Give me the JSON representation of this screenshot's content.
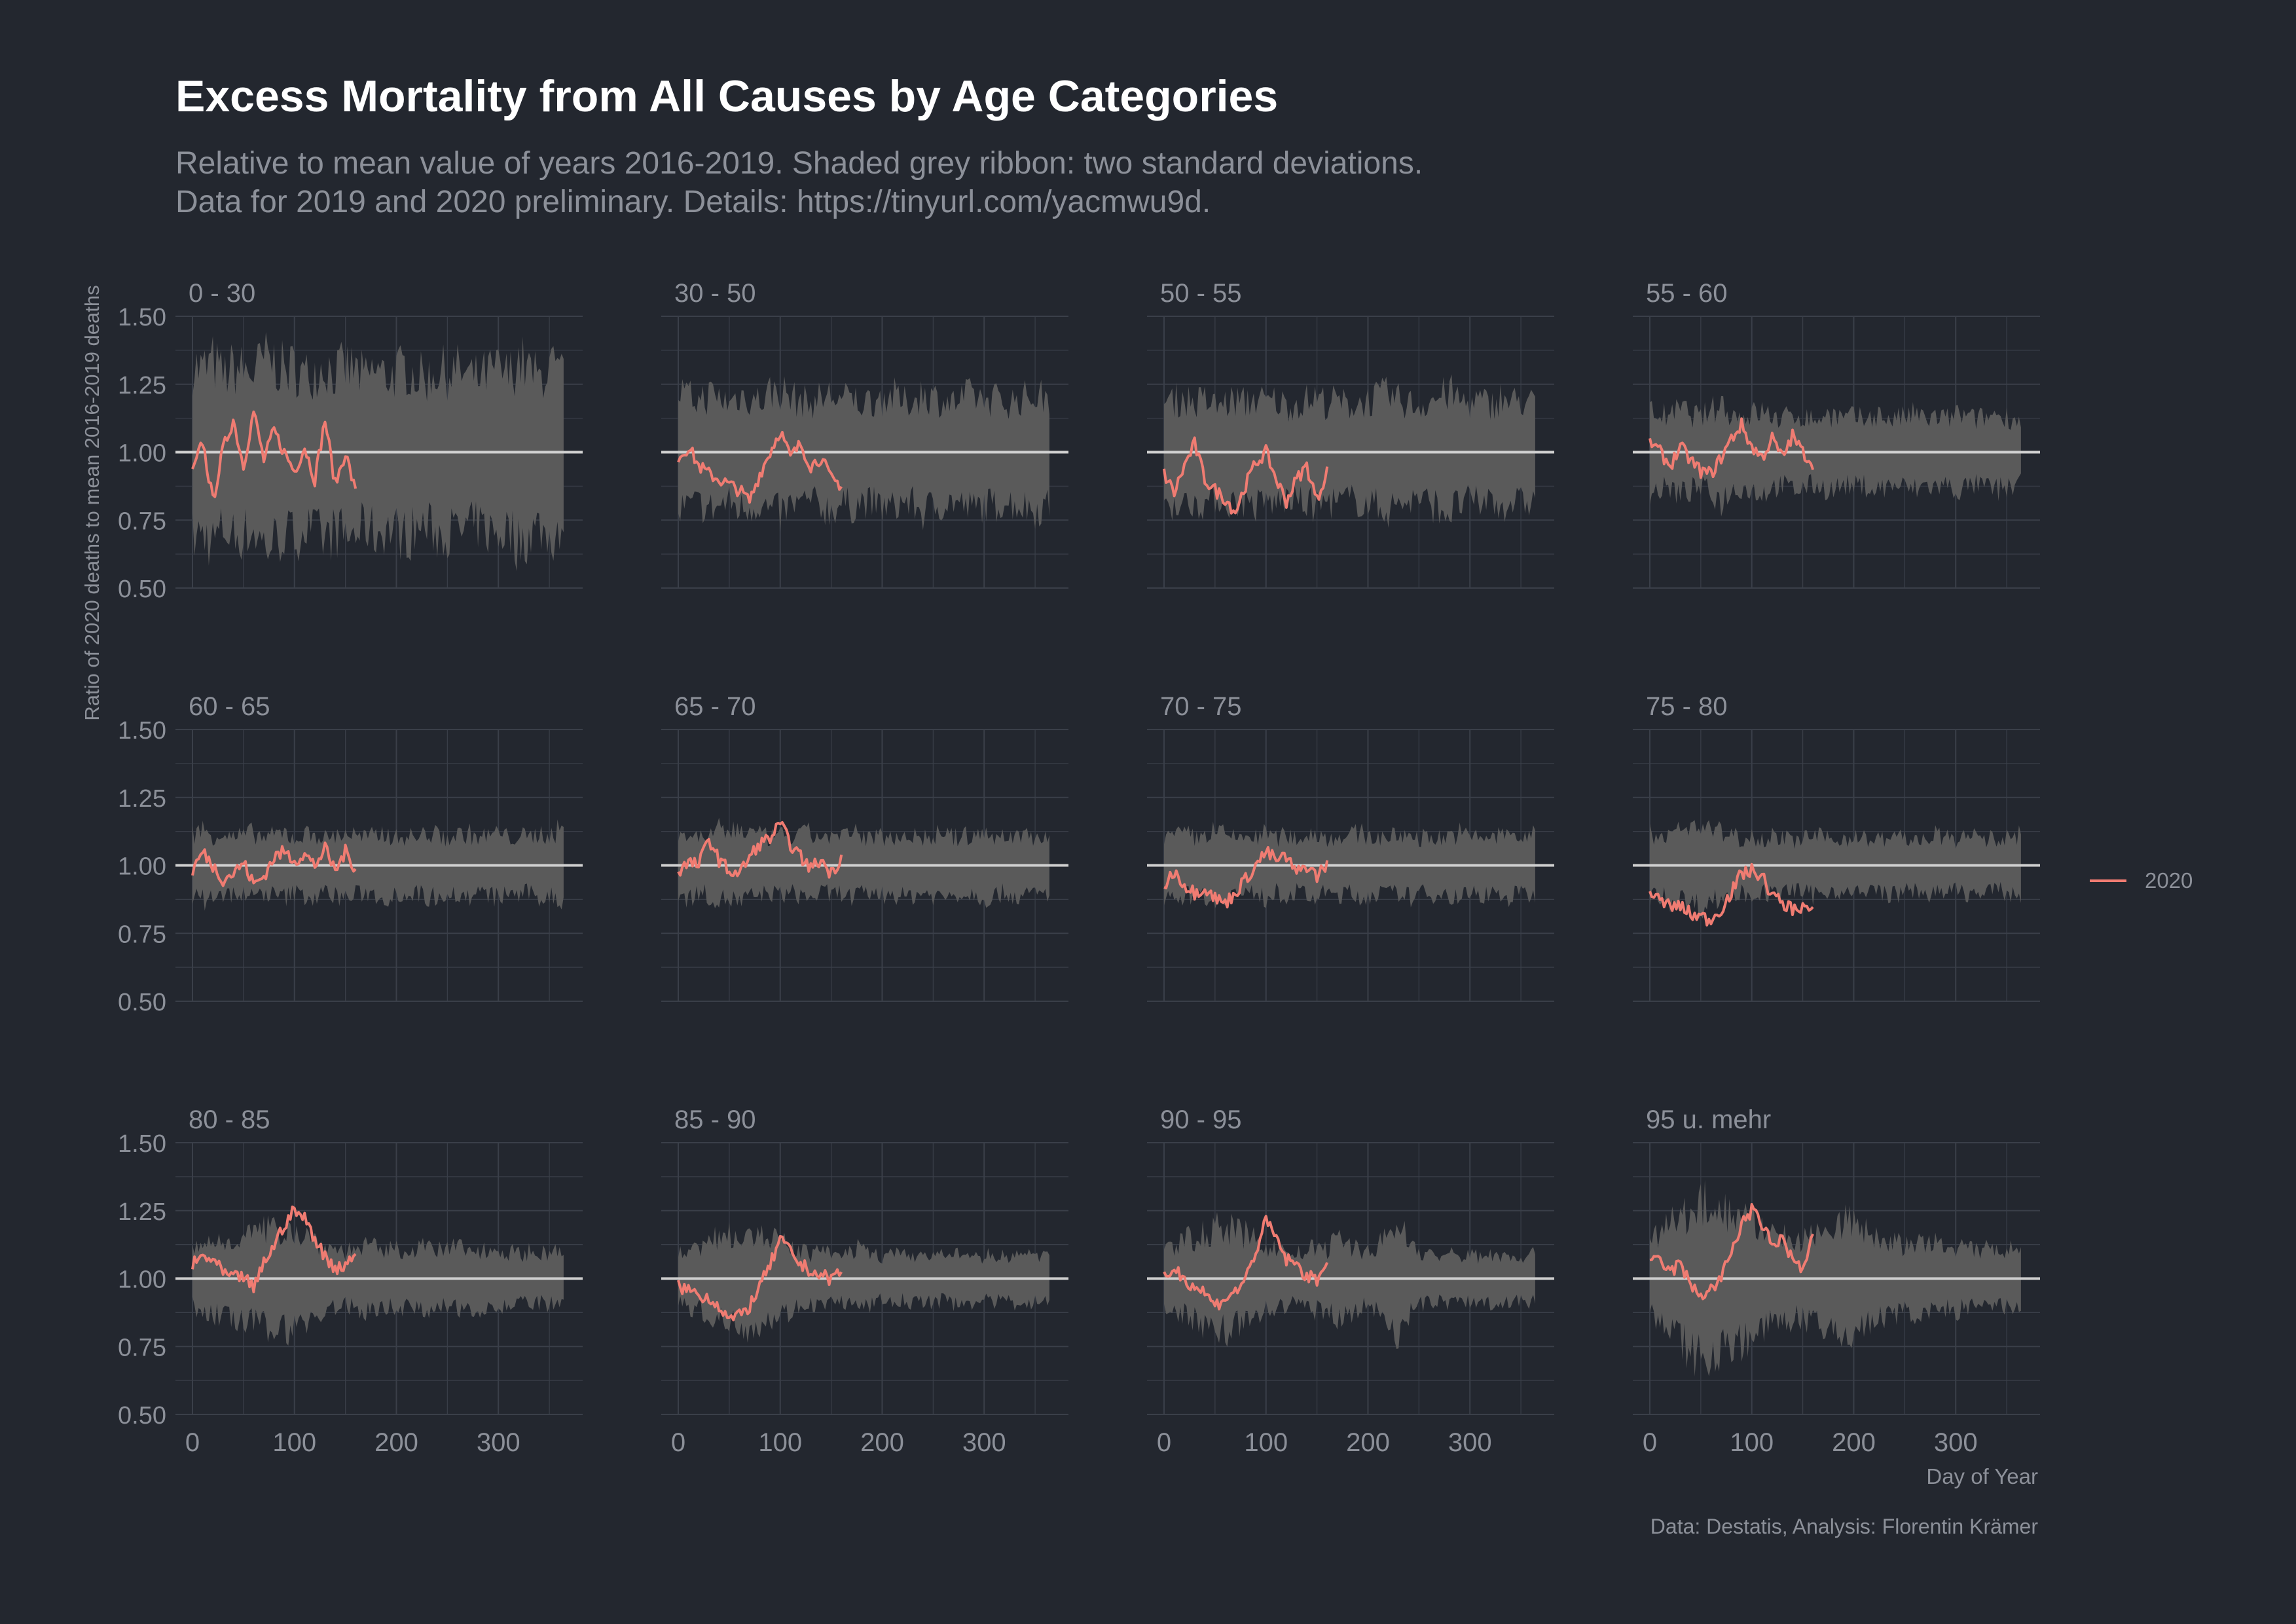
{
  "title": "Excess Mortality from All Causes by Age Categories",
  "subtitle": [
    "Relative to mean value of years 2016-2019. Shaded grey ribbon: two standard deviations.",
    "Data for 2019 and 2020 preliminary. Details: https://tinyurl.com/yacmwu9d."
  ],
  "caption": "Data: Destatis, Analysis: Florentin Krämer",
  "colors": {
    "background": "#23272f",
    "grid": "#3a3f49",
    "ribbon": "#5a5a5a",
    "reference_line": "#d0d0d0",
    "series_2020": "#f07c72",
    "text": "#8c9099"
  },
  "chart_data": {
    "type": "line",
    "facet_titles": [
      "0 - 30",
      "30 - 50",
      "50 - 55",
      "55 - 60",
      "60 - 65",
      "65 - 70",
      "70 - 75",
      "75 - 80",
      "80 - 85",
      "85 - 90",
      "90 - 95",
      "95 u. mehr"
    ],
    "xlabel": "Day of Year",
    "ylabel": "Ratio of 2020 deaths to mean 2016-2019 deaths",
    "xlim": [
      0,
      366
    ],
    "ylim": [
      0.5,
      1.5
    ],
    "x_ticks": [
      0,
      100,
      200,
      300
    ],
    "x_tick_labels": [
      "0",
      "100",
      "200",
      "300"
    ],
    "y_ticks": [
      0.5,
      0.75,
      1.0,
      1.25,
      1.5
    ],
    "y_tick_labels": [
      "0.50",
      "0.75",
      "1.00",
      "1.25",
      "1.50"
    ],
    "reference_value": 1.0,
    "legend": {
      "position": "right",
      "entries": [
        "2020"
      ]
    },
    "ribbon_x": [
      0,
      10,
      20,
      30,
      40,
      50,
      60,
      70,
      80,
      90,
      100,
      110,
      120,
      130,
      140,
      150,
      160,
      170,
      180,
      190,
      200,
      210,
      220,
      230,
      240,
      250,
      260,
      270,
      280,
      290,
      300,
      310,
      320,
      330,
      340,
      350,
      360
    ],
    "panels": [
      {
        "title": "0 - 30",
        "ribbon_halfwidth": [
          0.32,
          0.3,
          0.33,
          0.28,
          0.31,
          0.3,
          0.29,
          0.34,
          0.33,
          0.3,
          0.31,
          0.28,
          0.3,
          0.32,
          0.29,
          0.31,
          0.3,
          0.27,
          0.3,
          0.28,
          0.29,
          0.31,
          0.28,
          0.27,
          0.3,
          0.29,
          0.3,
          0.28,
          0.27,
          0.29,
          0.3,
          0.28,
          0.34,
          0.3,
          0.27,
          0.32,
          0.28
        ],
        "x": [
          0,
          10,
          20,
          30,
          40,
          50,
          60,
          70,
          80,
          90,
          100,
          110,
          120,
          130,
          140,
          150,
          160
        ],
        "y": [
          0.92,
          1.04,
          0.82,
          1.01,
          1.12,
          0.95,
          1.15,
          0.97,
          1.08,
          1.0,
          0.93,
          1.02,
          0.9,
          1.12,
          0.88,
          1.0,
          0.85
        ]
      },
      {
        "title": "30 - 50",
        "ribbon_halfwidth": [
          0.22,
          0.2,
          0.19,
          0.21,
          0.2,
          0.18,
          0.21,
          0.2,
          0.19,
          0.22,
          0.23,
          0.2,
          0.19,
          0.18,
          0.2,
          0.21,
          0.19,
          0.2,
          0.18,
          0.19,
          0.2,
          0.21,
          0.18,
          0.19,
          0.22,
          0.2,
          0.19,
          0.18,
          0.2,
          0.21,
          0.19,
          0.2,
          0.18,
          0.19,
          0.2,
          0.21,
          0.2
        ],
        "x": [
          0,
          10,
          20,
          30,
          40,
          50,
          60,
          70,
          80,
          90,
          100,
          110,
          120,
          130,
          140,
          150,
          160
        ],
        "y": [
          0.98,
          1.02,
          0.95,
          0.92,
          0.9,
          0.88,
          0.86,
          0.82,
          0.92,
          1.0,
          1.08,
          0.98,
          1.03,
          0.95,
          0.98,
          0.9,
          0.88
        ]
      },
      {
        "title": "50 - 55",
        "ribbon_halfwidth": [
          0.18,
          0.19,
          0.2,
          0.18,
          0.19,
          0.17,
          0.18,
          0.19,
          0.18,
          0.2,
          0.18,
          0.19,
          0.17,
          0.18,
          0.19,
          0.2,
          0.18,
          0.19,
          0.17,
          0.18,
          0.19,
          0.2,
          0.21,
          0.19,
          0.18,
          0.17,
          0.19,
          0.2,
          0.22,
          0.19,
          0.18,
          0.19,
          0.17,
          0.2,
          0.18,
          0.19,
          0.18
        ],
        "x": [
          0,
          10,
          20,
          30,
          40,
          50,
          60,
          70,
          80,
          90,
          100,
          110,
          120,
          130,
          140,
          150,
          160
        ],
        "y": [
          0.92,
          0.85,
          0.95,
          1.03,
          0.9,
          0.86,
          0.83,
          0.78,
          0.88,
          0.96,
          1.0,
          0.9,
          0.82,
          0.9,
          0.95,
          0.82,
          0.94
        ]
      },
      {
        "title": "55 - 60",
        "ribbon_halfwidth": [
          0.15,
          0.14,
          0.13,
          0.16,
          0.14,
          0.13,
          0.15,
          0.18,
          0.14,
          0.13,
          0.14,
          0.15,
          0.13,
          0.12,
          0.14,
          0.13,
          0.12,
          0.13,
          0.14,
          0.12,
          0.13,
          0.12,
          0.14,
          0.13,
          0.12,
          0.13,
          0.14,
          0.12,
          0.13,
          0.12,
          0.14,
          0.13,
          0.12,
          0.13,
          0.14,
          0.13,
          0.12
        ],
        "x": [
          0,
          10,
          20,
          30,
          40,
          50,
          60,
          70,
          80,
          90,
          100,
          110,
          120,
          130,
          140,
          150,
          160
        ],
        "y": [
          1.04,
          1.0,
          0.95,
          1.02,
          0.97,
          0.93,
          0.92,
          0.98,
          1.05,
          1.1,
          1.02,
          0.98,
          1.05,
          0.98,
          1.06,
          1.0,
          0.96
        ]
      },
      {
        "title": "60 - 65",
        "ribbon_halfwidth": [
          0.12,
          0.13,
          0.11,
          0.12,
          0.1,
          0.11,
          0.12,
          0.1,
          0.11,
          0.12,
          0.1,
          0.11,
          0.12,
          0.1,
          0.11,
          0.12,
          0.11,
          0.1,
          0.11,
          0.12,
          0.1,
          0.11,
          0.1,
          0.12,
          0.11,
          0.1,
          0.11,
          0.12,
          0.1,
          0.11,
          0.12,
          0.1,
          0.11,
          0.1,
          0.12,
          0.11,
          0.13
        ],
        "x": [
          0,
          10,
          20,
          30,
          40,
          50,
          60,
          70,
          80,
          90,
          100,
          110,
          120,
          130,
          140,
          150,
          160
        ],
        "y": [
          0.98,
          1.05,
          1.0,
          0.95,
          0.97,
          1.01,
          0.93,
          0.96,
          1.03,
          1.05,
          1.02,
          1.04,
          1.0,
          1.06,
          0.98,
          1.05,
          0.99
        ]
      },
      {
        "title": "65 - 70",
        "ribbon_halfwidth": [
          0.11,
          0.12,
          0.1,
          0.11,
          0.13,
          0.12,
          0.14,
          0.12,
          0.11,
          0.1,
          0.11,
          0.1,
          0.11,
          0.12,
          0.1,
          0.11,
          0.1,
          0.12,
          0.11,
          0.1,
          0.11,
          0.1,
          0.12,
          0.11,
          0.1,
          0.11,
          0.12,
          0.1,
          0.11,
          0.1,
          0.12,
          0.11,
          0.1,
          0.11,
          0.12,
          0.1,
          0.11
        ],
        "x": [
          0,
          10,
          20,
          30,
          40,
          50,
          60,
          70,
          80,
          90,
          100,
          110,
          120,
          130,
          140,
          150,
          160
        ],
        "y": [
          0.98,
          1.01,
          1.0,
          1.1,
          1.02,
          0.98,
          0.97,
          1.03,
          1.08,
          1.1,
          1.15,
          1.08,
          1.03,
          0.99,
          1.02,
          0.97,
          1.03
        ]
      },
      {
        "title": "70 - 75",
        "ribbon_halfwidth": [
          0.11,
          0.1,
          0.12,
          0.1,
          0.11,
          0.13,
          0.11,
          0.1,
          0.11,
          0.1,
          0.12,
          0.1,
          0.11,
          0.1,
          0.11,
          0.12,
          0.1,
          0.11,
          0.1,
          0.12,
          0.11,
          0.1,
          0.11,
          0.1,
          0.12,
          0.1,
          0.11,
          0.1,
          0.11,
          0.12,
          0.1,
          0.11,
          0.1,
          0.11,
          0.12,
          0.1,
          0.11
        ],
        "x": [
          0,
          10,
          20,
          30,
          40,
          50,
          60,
          70,
          80,
          90,
          100,
          110,
          120,
          130,
          140,
          150,
          160
        ],
        "y": [
          0.92,
          0.98,
          0.93,
          0.9,
          0.92,
          0.88,
          0.86,
          0.9,
          0.95,
          1.0,
          1.05,
          1.02,
          1.03,
          0.97,
          1.0,
          0.96,
          1.01
        ]
      },
      {
        "title": "75 - 80",
        "ribbon_halfwidth": [
          0.12,
          0.11,
          0.13,
          0.12,
          0.14,
          0.15,
          0.13,
          0.12,
          0.11,
          0.1,
          0.11,
          0.1,
          0.11,
          0.1,
          0.09,
          0.1,
          0.11,
          0.1,
          0.09,
          0.1,
          0.11,
          0.1,
          0.09,
          0.1,
          0.11,
          0.1,
          0.09,
          0.1,
          0.11,
          0.1,
          0.09,
          0.1,
          0.11,
          0.1,
          0.09,
          0.1,
          0.11
        ],
        "x": [
          0,
          10,
          20,
          30,
          40,
          50,
          60,
          70,
          80,
          90,
          100,
          110,
          120,
          130,
          140,
          150,
          160
        ],
        "y": [
          0.9,
          0.87,
          0.85,
          0.85,
          0.82,
          0.81,
          0.8,
          0.84,
          0.9,
          0.97,
          0.98,
          0.96,
          0.89,
          0.86,
          0.84,
          0.85,
          0.83
        ]
      },
      {
        "title": "80 - 85",
        "ribbon_halfwidth": [
          0.1,
          0.12,
          0.14,
          0.13,
          0.15,
          0.17,
          0.16,
          0.18,
          0.17,
          0.19,
          0.18,
          0.16,
          0.14,
          0.12,
          0.11,
          0.1,
          0.11,
          0.12,
          0.11,
          0.1,
          0.11,
          0.1,
          0.12,
          0.11,
          0.1,
          0.11,
          0.12,
          0.1,
          0.11,
          0.1,
          0.11,
          0.1,
          0.09,
          0.1,
          0.09,
          0.1,
          0.09
        ],
        "x": [
          0,
          10,
          20,
          30,
          40,
          50,
          60,
          70,
          80,
          90,
          100,
          110,
          120,
          130,
          140,
          150,
          160
        ],
        "y": [
          1.05,
          1.08,
          1.07,
          1.02,
          1.0,
          1.01,
          0.96,
          1.06,
          1.12,
          1.2,
          1.25,
          1.22,
          1.15,
          1.08,
          1.04,
          1.05,
          1.1
        ]
      },
      {
        "title": "85 - 90",
        "ribbon_halfwidth": [
          0.09,
          0.1,
          0.12,
          0.13,
          0.15,
          0.17,
          0.16,
          0.18,
          0.16,
          0.15,
          0.13,
          0.12,
          0.1,
          0.09,
          0.1,
          0.09,
          0.08,
          0.1,
          0.12,
          0.09,
          0.08,
          0.09,
          0.08,
          0.09,
          0.08,
          0.09,
          0.08,
          0.09,
          0.08,
          0.09,
          0.08,
          0.09,
          0.08,
          0.09,
          0.08,
          0.09,
          0.08
        ],
        "x": [
          0,
          10,
          20,
          30,
          40,
          50,
          60,
          70,
          80,
          90,
          100,
          110,
          120,
          130,
          140,
          150,
          160
        ],
        "y": [
          0.97,
          0.96,
          0.94,
          0.93,
          0.9,
          0.85,
          0.86,
          0.9,
          0.97,
          1.05,
          1.14,
          1.1,
          1.05,
          1.03,
          1.01,
          1.0,
          1.03
        ]
      },
      {
        "title": "90 - 95",
        "ribbon_halfwidth": [
          0.1,
          0.12,
          0.14,
          0.15,
          0.17,
          0.18,
          0.19,
          0.17,
          0.16,
          0.14,
          0.12,
          0.11,
          0.1,
          0.09,
          0.1,
          0.12,
          0.11,
          0.14,
          0.13,
          0.11,
          0.1,
          0.12,
          0.16,
          0.2,
          0.14,
          0.1,
          0.09,
          0.08,
          0.09,
          0.08,
          0.09,
          0.08,
          0.09,
          0.08,
          0.09,
          0.08,
          0.09
        ],
        "x": [
          0,
          10,
          20,
          30,
          40,
          50,
          60,
          70,
          80,
          90,
          100,
          110,
          120,
          130,
          140,
          150,
          160
        ],
        "y": [
          1.0,
          1.04,
          1.0,
          0.97,
          0.95,
          0.9,
          0.93,
          0.95,
          1.0,
          1.1,
          1.21,
          1.15,
          1.07,
          1.05,
          1.01,
          0.99,
          1.08
        ]
      },
      {
        "title": "95 u. mehr",
        "ribbon_halfwidth": [
          0.13,
          0.16,
          0.19,
          0.23,
          0.26,
          0.28,
          0.27,
          0.26,
          0.24,
          0.23,
          0.21,
          0.19,
          0.17,
          0.15,
          0.15,
          0.14,
          0.17,
          0.2,
          0.18,
          0.22,
          0.2,
          0.17,
          0.16,
          0.14,
          0.13,
          0.12,
          0.13,
          0.12,
          0.13,
          0.11,
          0.12,
          0.11,
          0.1,
          0.11,
          0.1,
          0.11,
          0.1
        ],
        "x": [
          0,
          10,
          20,
          30,
          40,
          50,
          60,
          70,
          80,
          90,
          100,
          110,
          120,
          130,
          140,
          150,
          160
        ],
        "y": [
          1.05,
          1.07,
          1.02,
          1.06,
          0.97,
          0.94,
          0.96,
          1.0,
          1.1,
          1.2,
          1.25,
          1.2,
          1.12,
          1.15,
          1.07,
          1.03,
          1.15
        ]
      }
    ]
  }
}
